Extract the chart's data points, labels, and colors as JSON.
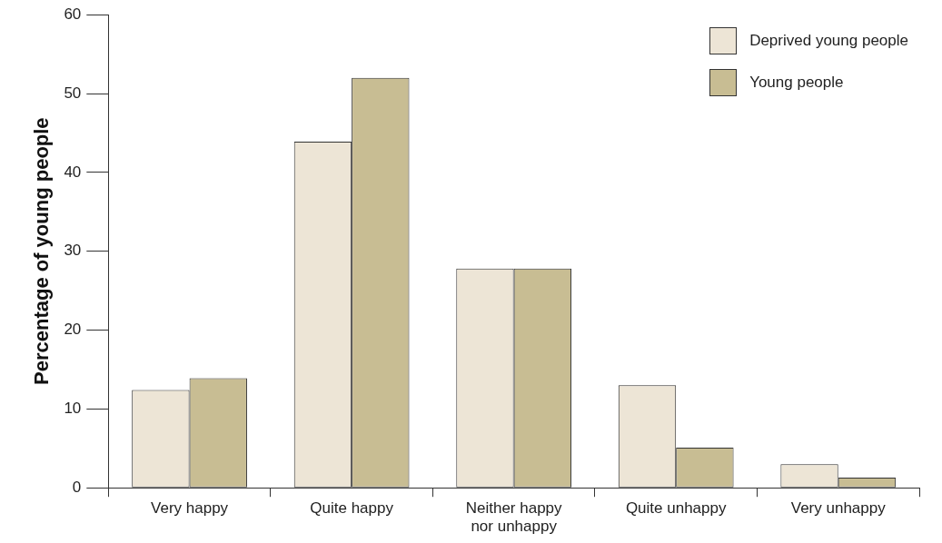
{
  "chart_data": {
    "type": "bar",
    "ylabel": "Percentage of young people",
    "categories": [
      "Very happy",
      "Quite happy",
      "Neither happy nor unhappy",
      "Quite unhappy",
      "Very unhappy"
    ],
    "series": [
      {
        "name": "Deprived young people",
        "color": "#ede5d6",
        "values": [
          12.4,
          43.9,
          27.8,
          13,
          3
        ]
      },
      {
        "name": "Young people",
        "color": "#c8bd93",
        "values": [
          13.9,
          52,
          27.8,
          5.1,
          1.3
        ]
      }
    ],
    "ylim": [
      0,
      60
    ],
    "yticks": [
      0,
      10,
      20,
      30,
      40,
      50,
      60
    ],
    "grid": false,
    "legend": "top right"
  }
}
